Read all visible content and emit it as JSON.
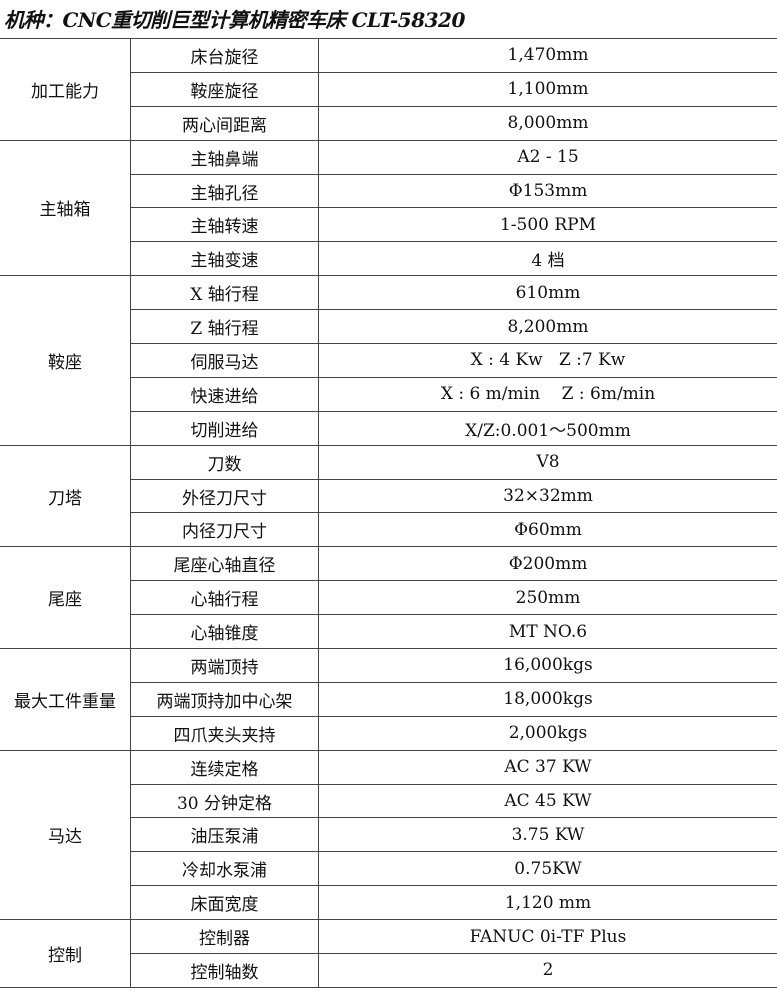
{
  "title": "机种：CNC重切削巨型计算机精密车床 CLT-58320",
  "groups": [
    {
      "category": "加工能力",
      "rows": [
        [
          "床台旋径",
          "1,470mm"
        ],
        [
          "鞍座旋径",
          "1,100mm"
        ],
        [
          "两心间距离",
          "8,000mm"
        ]
      ]
    },
    {
      "category": "主轴箱",
      "rows": [
        [
          "主轴鼻端",
          "A2 - 15"
        ],
        [
          "主轴孔径",
          "Φ153mm"
        ],
        [
          "主轴转速",
          "1-500 RPM"
        ],
        [
          "主轴变速",
          "4 档"
        ]
      ]
    },
    {
      "category": "鞍座",
      "rows": [
        [
          "X 轴行程",
          "610mm"
        ],
        [
          "Z 轴行程",
          "8,200mm"
        ],
        [
          "伺服马达",
          "X : 4 Kw   Z :7 Kw"
        ],
        [
          "快速进给",
          "X : 6 m/min    Z : 6m/min"
        ],
        [
          "切削进给",
          "X/Z:0.001～500mm"
        ]
      ]
    },
    {
      "category": "刀塔",
      "rows": [
        [
          "刀数",
          "V8"
        ],
        [
          "外径刀尺寸",
          "32×32mm"
        ],
        [
          "内径刀尺寸",
          "Φ60mm"
        ]
      ]
    },
    {
      "category": "尾座",
      "rows": [
        [
          "尾座心轴直径",
          "Φ200mm"
        ],
        [
          "心轴行程",
          "250mm"
        ],
        [
          "心轴锥度",
          "MT NO.6"
        ]
      ]
    },
    {
      "category": "最大工件重量",
      "rows": [
        [
          "两端顶持",
          "16,000kgs"
        ],
        [
          "两端顶持加中心架",
          "18,000kgs"
        ],
        [
          "四爪夹头夹持",
          "2,000kgs"
        ]
      ]
    },
    {
      "category": "马达",
      "rows": [
        [
          "连续定格",
          "AC 37 KW"
        ],
        [
          "30 分钟定格",
          "AC 45 KW"
        ],
        [
          "油压泵浦",
          "3.75 KW"
        ],
        [
          "冷却水泵浦",
          "0.75KW"
        ],
        [
          "床面宽度",
          "1,120 mm"
        ]
      ]
    },
    {
      "category": "控制",
      "rows": [
        [
          "控制器",
          "FANUC 0i-TF Plus"
        ],
        [
          "控制轴数",
          "2"
        ]
      ]
    }
  ]
}
